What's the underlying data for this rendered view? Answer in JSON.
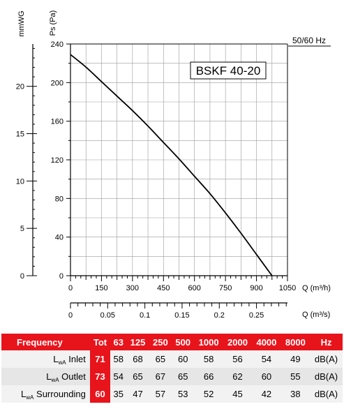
{
  "chart_data": {
    "type": "line",
    "title": "BSKF 40-20",
    "frequency_note": "50/60 Hz",
    "left_axis_label": "mmWG",
    "ylabel": "Ps (Pa)",
    "xlabel": "Q (m³/h)",
    "x2label": "Q (m³/s)",
    "ylim": [
      0,
      240
    ],
    "xlim": [
      0,
      1050
    ],
    "yticks": [
      0,
      40,
      80,
      120,
      160,
      200,
      240
    ],
    "xticks": [
      0,
      150,
      300,
      450,
      600,
      750,
      900,
      1050
    ],
    "mmwg_ticks": [
      0,
      5,
      10,
      15,
      20
    ],
    "m3s_ticks": [
      "0",
      "0.05",
      "0.1",
      "0.15",
      "0.2",
      "0.25"
    ],
    "grid": true,
    "series": [
      {
        "x": [
          0,
          75,
          150,
          225,
          300,
          375,
          450,
          525,
          600,
          675,
          750,
          825,
          900,
          975
        ],
        "y": [
          229,
          216,
          201,
          186,
          171,
          155,
          138,
          121,
          103,
          85,
          65,
          44,
          22,
          0
        ]
      }
    ]
  },
  "table": {
    "header": [
      "Frequency",
      "Tot",
      "63",
      "125",
      "250",
      "500",
      "1000",
      "2000",
      "4000",
      "8000",
      "Hz"
    ],
    "rows": [
      {
        "prefix": "L",
        "sub": "wA",
        "label": "Inlet",
        "tot": "71",
        "values": [
          "58",
          "68",
          "65",
          "60",
          "58",
          "56",
          "54",
          "49"
        ],
        "unit": "dB(A)"
      },
      {
        "prefix": "L",
        "sub": "wA",
        "label": "Outlet",
        "tot": "73",
        "values": [
          "54",
          "65",
          "67",
          "65",
          "66",
          "62",
          "60",
          "55"
        ],
        "unit": "dB(A)"
      },
      {
        "prefix": "L",
        "sub": "wA",
        "label": "Surrounding",
        "tot": "60",
        "values": [
          "35",
          "47",
          "57",
          "53",
          "52",
          "45",
          "42",
          "38"
        ],
        "unit": "dB(A)"
      }
    ]
  }
}
